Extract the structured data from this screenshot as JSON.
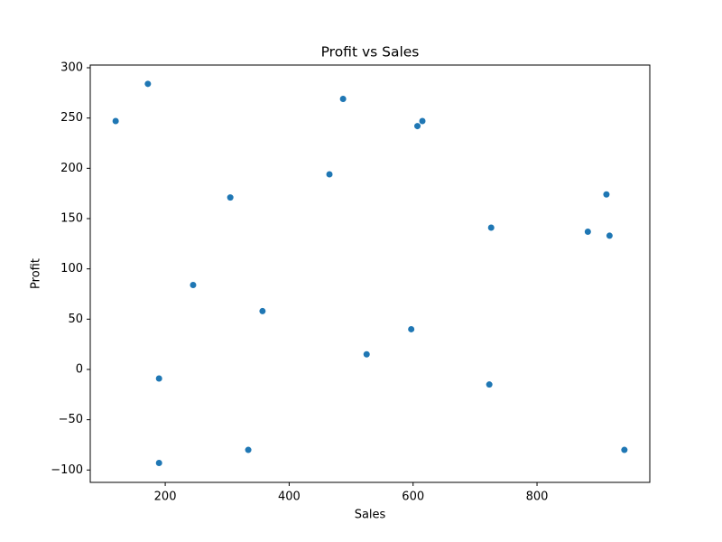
{
  "chart_data": {
    "type": "scatter",
    "title": "Profit vs Sales",
    "x_label": "Sales",
    "y_label": "Profit",
    "x": [
      120,
      172,
      190,
      190,
      245,
      305,
      334,
      357,
      465,
      487,
      525,
      597,
      607,
      615,
      723,
      726,
      882,
      912,
      917,
      941
    ],
    "values": [
      247,
      284,
      -9,
      -93,
      84,
      171,
      -80,
      58,
      194,
      269,
      15,
      40,
      242,
      247,
      -15,
      141,
      137,
      174,
      133,
      -80
    ],
    "color": "#1f77b4",
    "xlim": [
      79,
      982
    ],
    "xticks": [
      200,
      400,
      600,
      800
    ],
    "ylim": [
      -112.3,
      302.7
    ],
    "yticks": [
      {
        "value": -100,
        "label": "−100"
      },
      {
        "value": -50,
        "label": "−50"
      },
      0,
      50,
      100,
      150,
      200,
      250,
      300
    ],
    "grid": false
  }
}
